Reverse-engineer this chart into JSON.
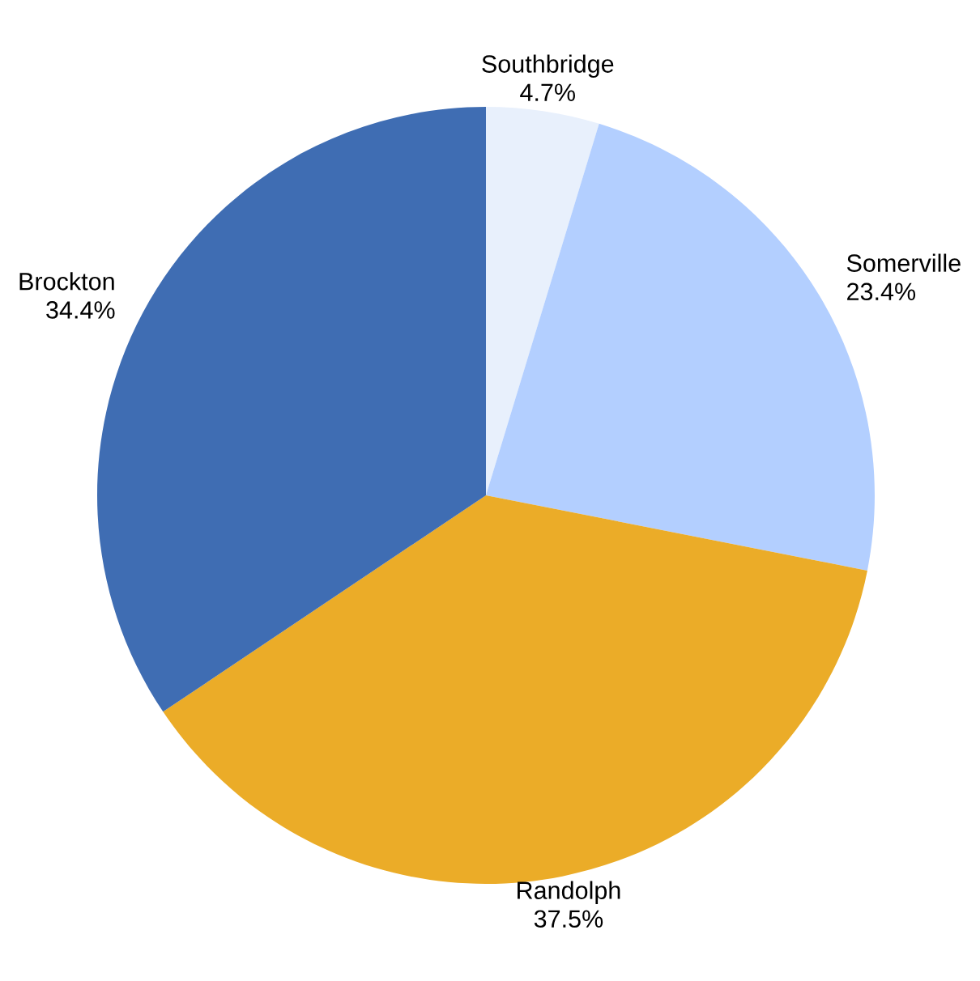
{
  "chart_data": {
    "type": "pie",
    "categories": [
      "Southbridge",
      "Somerville",
      "Randolph",
      "Brockton"
    ],
    "values": [
      4.7,
      23.4,
      37.5,
      34.4
    ],
    "colors": [
      "#e8f0fc",
      "#b3cfff",
      "#ebac28",
      "#3f6db3"
    ],
    "value_labels": [
      "4.7%",
      "23.4%",
      "37.5%",
      "34.4%"
    ]
  }
}
